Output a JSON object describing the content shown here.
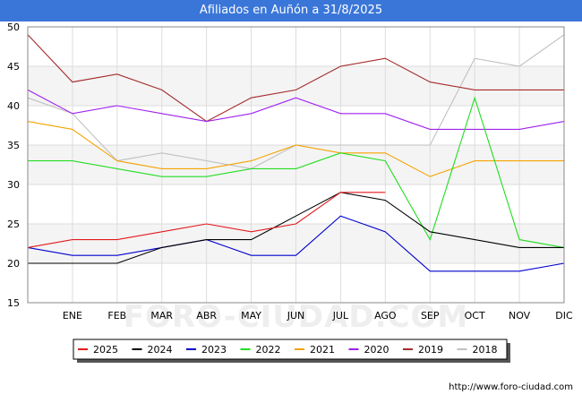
{
  "title": "Afiliados en Auñón a 31/8/2025",
  "watermark": "FORO-CIUDAD.COM",
  "footer_url": "http://www.foro-ciudad.com",
  "chart_data": {
    "type": "line",
    "title": "Afiliados en Auñón a 31/8/2025",
    "xlabel": "",
    "ylabel": "",
    "categories": [
      "",
      "ENE",
      "FEB",
      "MAR",
      "ABR",
      "MAY",
      "JUN",
      "JUL",
      "AGO",
      "SEP",
      "OCT",
      "NOV",
      "DIC"
    ],
    "ylim": [
      15,
      50
    ],
    "yticks": [
      15,
      20,
      25,
      30,
      35,
      40,
      45,
      50
    ],
    "grid": true,
    "legend_position": "bottom",
    "series": [
      {
        "name": "2025",
        "color": "#e31a1c",
        "values": [
          22,
          23,
          23,
          24,
          25,
          24,
          25,
          29,
          29,
          null,
          null,
          null,
          null
        ]
      },
      {
        "name": "2024",
        "color": "#000000",
        "values": [
          20,
          20,
          20,
          22,
          23,
          23,
          26,
          29,
          28,
          24,
          23,
          22,
          22
        ]
      },
      {
        "name": "2023",
        "color": "#0000cc",
        "values": [
          22,
          21,
          21,
          22,
          23,
          21,
          21,
          26,
          24,
          19,
          19,
          19,
          20
        ]
      },
      {
        "name": "2022",
        "color": "#22dd22",
        "values": [
          33,
          33,
          32,
          31,
          31,
          32,
          32,
          34,
          33,
          23,
          41,
          23,
          22
        ]
      },
      {
        "name": "2021",
        "color": "#f5a300",
        "values": [
          38,
          37,
          33,
          32,
          32,
          33,
          35,
          34,
          34,
          31,
          33,
          33,
          33
        ]
      },
      {
        "name": "2020",
        "color": "#a020f0",
        "values": [
          42,
          39,
          40,
          39,
          38,
          39,
          41,
          39,
          39,
          37,
          37,
          37,
          38
        ]
      },
      {
        "name": "2019",
        "color": "#a52a2a",
        "values": [
          49,
          43,
          44,
          42,
          38,
          41,
          42,
          45,
          46,
          43,
          42,
          42,
          42
        ]
      },
      {
        "name": "2018",
        "color": "#c0c0c0",
        "values": [
          41,
          39,
          33,
          34,
          33,
          32,
          35,
          35,
          35,
          35,
          46,
          45,
          49
        ]
      }
    ]
  }
}
